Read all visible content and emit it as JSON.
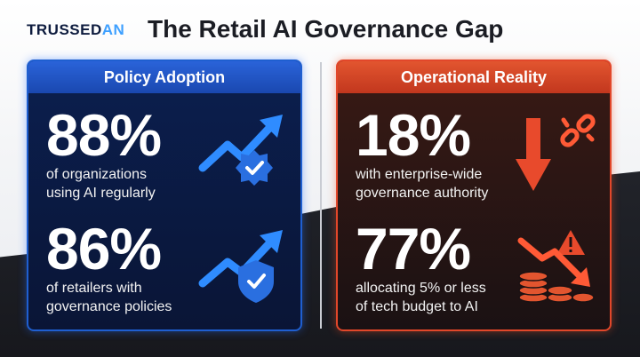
{
  "brand": {
    "logo_main": "TRUSSED",
    "logo_accent": "AN"
  },
  "title": "The Retail AI Governance Gap",
  "panels": {
    "left": {
      "heading": "Policy Adoption",
      "stats": [
        {
          "value": "88%",
          "line1": "of organizations",
          "line2": "using AI regularly",
          "icon": "trend-up-badge-check-icon"
        },
        {
          "value": "86%",
          "line1": "of retailers with",
          "line2": "governance policies",
          "icon": "trend-up-shield-check-icon"
        }
      ]
    },
    "right": {
      "heading": "Operational Reality",
      "stats": [
        {
          "value": "18%",
          "line1": "with enterprise-wide",
          "line2": "governance authority",
          "icon": "arrow-down-broken-link-icon"
        },
        {
          "value": "77%",
          "line1": "allocating 5% or less",
          "line2": "of tech budget to AI",
          "icon": "coins-trend-down-warning-icon"
        }
      ]
    }
  },
  "colors": {
    "policy_accent": "#2a63d9",
    "reality_accent": "#e2472a",
    "icon_blue": "#3ea0ff",
    "icon_red": "#ff5a36"
  }
}
